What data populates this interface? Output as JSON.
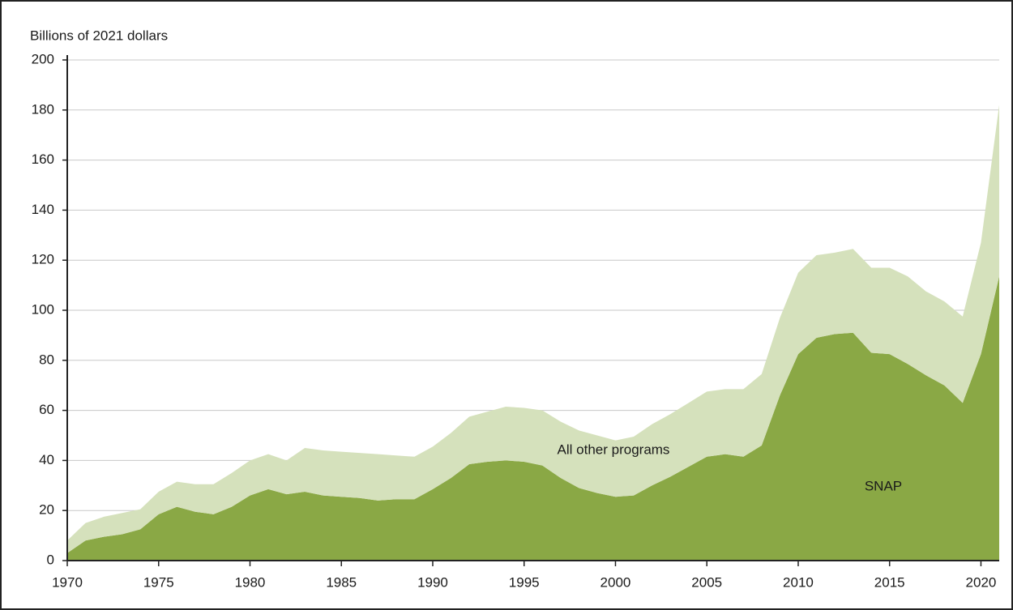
{
  "chart_data": {
    "type": "stacked_area",
    "y_axis_label": "Billions of 2021 dollars",
    "x": [
      1970,
      1971,
      1972,
      1973,
      1974,
      1975,
      1976,
      1977,
      1978,
      1979,
      1980,
      1981,
      1982,
      1983,
      1984,
      1985,
      1986,
      1987,
      1988,
      1989,
      1990,
      1991,
      1992,
      1993,
      1994,
      1995,
      1996,
      1997,
      1998,
      1999,
      2000,
      2001,
      2002,
      2003,
      2004,
      2005,
      2006,
      2007,
      2008,
      2009,
      2010,
      2011,
      2012,
      2013,
      2014,
      2015,
      2016,
      2017,
      2018,
      2019,
      2020,
      2021
    ],
    "series": [
      {
        "name": "SNAP",
        "color": "#8aa845",
        "values": [
          3,
          8,
          9.5,
          10.5,
          12.5,
          18.5,
          21.5,
          19.5,
          18.5,
          21.5,
          26,
          28.5,
          26.5,
          27.5,
          26,
          25.5,
          25,
          24,
          24.5,
          24.5,
          28.5,
          33,
          38.5,
          39.5,
          40,
          39.5,
          38,
          33,
          29,
          27,
          25.5,
          26,
          30,
          33.5,
          37.5,
          41.5,
          42.5,
          41.5,
          46,
          66,
          82.5,
          89,
          90.5,
          91,
          83,
          82.5,
          78.5,
          74,
          70,
          63,
          82.5,
          113.5
        ]
      },
      {
        "name": "All other programs",
        "color": "#d5e1bc",
        "values": [
          5,
          7,
          8,
          8.5,
          8,
          9,
          10,
          11,
          12,
          13.5,
          14,
          14,
          13.5,
          17.5,
          18,
          18,
          18,
          18.5,
          17.5,
          17,
          17,
          18,
          19,
          20,
          21.5,
          21.5,
          22,
          22.5,
          23,
          23,
          22.5,
          23.5,
          24.5,
          25,
          25.5,
          26,
          26,
          27,
          28.5,
          31,
          32.5,
          33,
          32.5,
          33.5,
          34,
          34.5,
          35,
          33.5,
          33.5,
          34.5,
          44.5,
          68.5
        ]
      }
    ],
    "xlim": [
      1970,
      2021
    ],
    "xticks": [
      1970,
      1975,
      1980,
      1985,
      1990,
      1995,
      2000,
      2005,
      2010,
      2015,
      2020
    ],
    "ylim": [
      0,
      200
    ],
    "yticks": [
      0,
      20,
      40,
      60,
      80,
      100,
      120,
      140,
      160,
      180,
      200
    ],
    "grid": true
  }
}
